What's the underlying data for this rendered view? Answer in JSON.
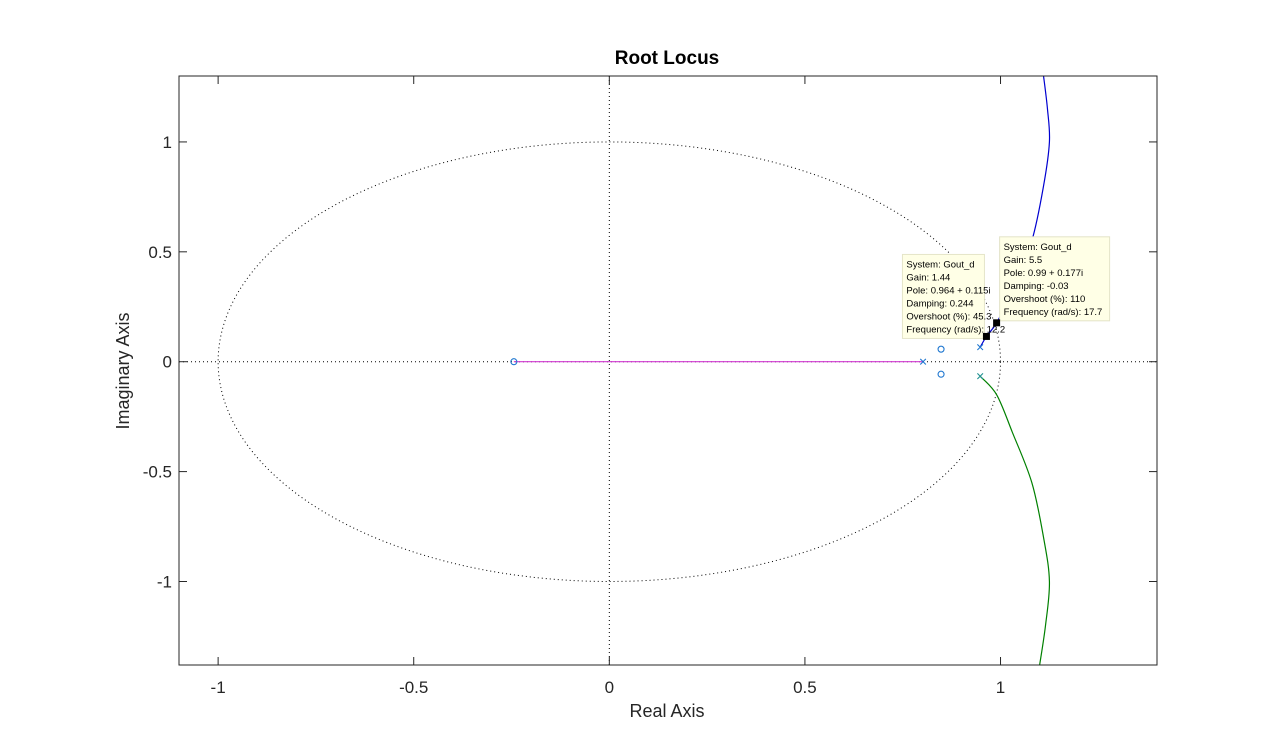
{
  "chart_data": {
    "type": "scatter",
    "title": "Root Locus",
    "xlabel": "Real Axis",
    "ylabel": "Imaginary Axis",
    "xlim": [
      -1.1,
      1.4
    ],
    "ylim": [
      -1.38,
      1.3
    ],
    "xticks": [
      -1,
      -0.5,
      0,
      0.5,
      1
    ],
    "xtick_labels": [
      "-1",
      "-0.5",
      "0",
      "0.5",
      "1"
    ],
    "yticks": [
      -1,
      -0.5,
      0,
      0.5,
      1
    ],
    "ytick_labels": [
      "-1",
      "-0.5",
      "0",
      "0.5",
      "1"
    ],
    "unit_circle": true,
    "poles": [
      {
        "re": 0.802,
        "im": 0.0
      },
      {
        "re": 0.948,
        "im": 0.066
      },
      {
        "re": 0.948,
        "im": -0.066
      }
    ],
    "zeros": [
      {
        "re": -0.244,
        "im": 0.0
      },
      {
        "re": 0.848,
        "im": 0.057
      },
      {
        "re": 0.848,
        "im": -0.057
      }
    ],
    "series": [
      {
        "color": "#d038d0",
        "points": [
          [
            -0.244,
            0
          ],
          [
            0.802,
            0
          ]
        ]
      },
      {
        "color": "#0000d0",
        "points": [
          [
            0.948,
            0.066
          ],
          [
            0.964,
            0.115
          ],
          [
            0.99,
            0.177
          ],
          [
            1.03,
            0.32
          ],
          [
            1.08,
            0.55
          ],
          [
            1.11,
            0.8
          ],
          [
            1.125,
            1.0
          ],
          [
            1.12,
            1.15
          ],
          [
            1.11,
            1.3
          ]
        ]
      },
      {
        "color": "#008000",
        "points": [
          [
            0.948,
            -0.066
          ],
          [
            0.99,
            -0.15
          ],
          [
            1.03,
            -0.32
          ],
          [
            1.08,
            -0.55
          ],
          [
            1.11,
            -0.8
          ],
          [
            1.125,
            -1.0
          ],
          [
            1.115,
            -1.2
          ],
          [
            1.1,
            -1.38
          ]
        ]
      }
    ],
    "datatips": [
      {
        "anchor": {
          "re": 0.964,
          "im": 0.115
        },
        "placement": "upper-left",
        "lines": [
          "System: Gout_d",
          "Gain: 1.44",
          "Pole: 0.964 + 0.115i",
          "Damping: 0.244",
          "Overshoot (%): 45.3",
          "Frequency (rad/s): 12.2"
        ]
      },
      {
        "anchor": {
          "re": 0.99,
          "im": 0.177
        },
        "placement": "upper-right",
        "lines": [
          "System: Gout_d",
          "Gain: 5.5",
          "Pole: 0.99 + 0.177i",
          "Damping: -0.03",
          "Overshoot (%): 110",
          "Frequency (rad/s): 17.7"
        ]
      }
    ],
    "grid": false
  }
}
